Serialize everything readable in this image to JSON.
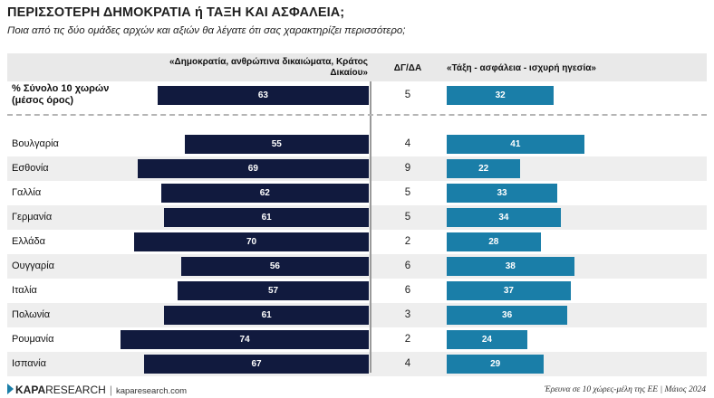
{
  "title": "ΠΕΡΙΣΣΟΤΕΡΗ ΔΗΜΟΚΡΑΤΙΑ ή ΤΑΞΗ ΚΑΙ ΑΣΦΑΛΕΙΑ;",
  "subtitle": "Ποια από τις δύο ομάδες αρχών και αξιών θα λέγατε ότι σας χαρακτηρίζει περισσότερο;",
  "chart_data": {
    "type": "bar",
    "title": "ΠΕΡΙΣΣΟΤΕΡΗ ΔΗΜΟΚΡΑΤΙΑ ή ΤΑΞΗ ΚΑΙ ΑΣΦΑΛΕΙΑ;",
    "column_headers": {
      "left": "«Δημοκρατία, ανθρώπινα δικαιώματα, Κράτος Δικαίου»",
      "middle": "ΔΓ/ΔΑ",
      "right": "«Τάξη - ασφάλεια - ισχυρή ηγεσία»"
    },
    "summary": {
      "label": "% Σύνολο 10 χωρών (μέσος όρος)",
      "left": 63,
      "middle": 5,
      "right": 32
    },
    "categories": [
      "Βουλγαρία",
      "Εσθονία",
      "Γαλλία",
      "Γερμανία",
      "Ελλάδα",
      "Ουγγαρία",
      "Ιταλία",
      "Πολωνία",
      "Ρουμανία",
      "Ισπανία"
    ],
    "series": [
      {
        "name": "«Δημοκρατία, ανθρώπινα δικαιώματα, Κράτος Δικαίου»",
        "color": "#111a3e",
        "values": [
          55,
          69,
          62,
          61,
          70,
          56,
          57,
          61,
          74,
          67
        ]
      },
      {
        "name": "ΔΓ/ΔΑ",
        "values": [
          4,
          9,
          5,
          5,
          2,
          6,
          6,
          3,
          2,
          4
        ]
      },
      {
        "name": "«Τάξη - ασφάλεια - ισχυρή ηγεσία»",
        "color": "#1a7ea8",
        "values": [
          41,
          22,
          33,
          34,
          28,
          38,
          37,
          36,
          24,
          29
        ]
      }
    ]
  },
  "footer": {
    "logo_bold": "KAPA",
    "logo_rest": "RESEARCH",
    "separator": "|",
    "site": "kaparesearch.com",
    "note": "Έρευνα σε 10 χώρες-μέλη της ΕΕ | Μάιος 2024"
  }
}
